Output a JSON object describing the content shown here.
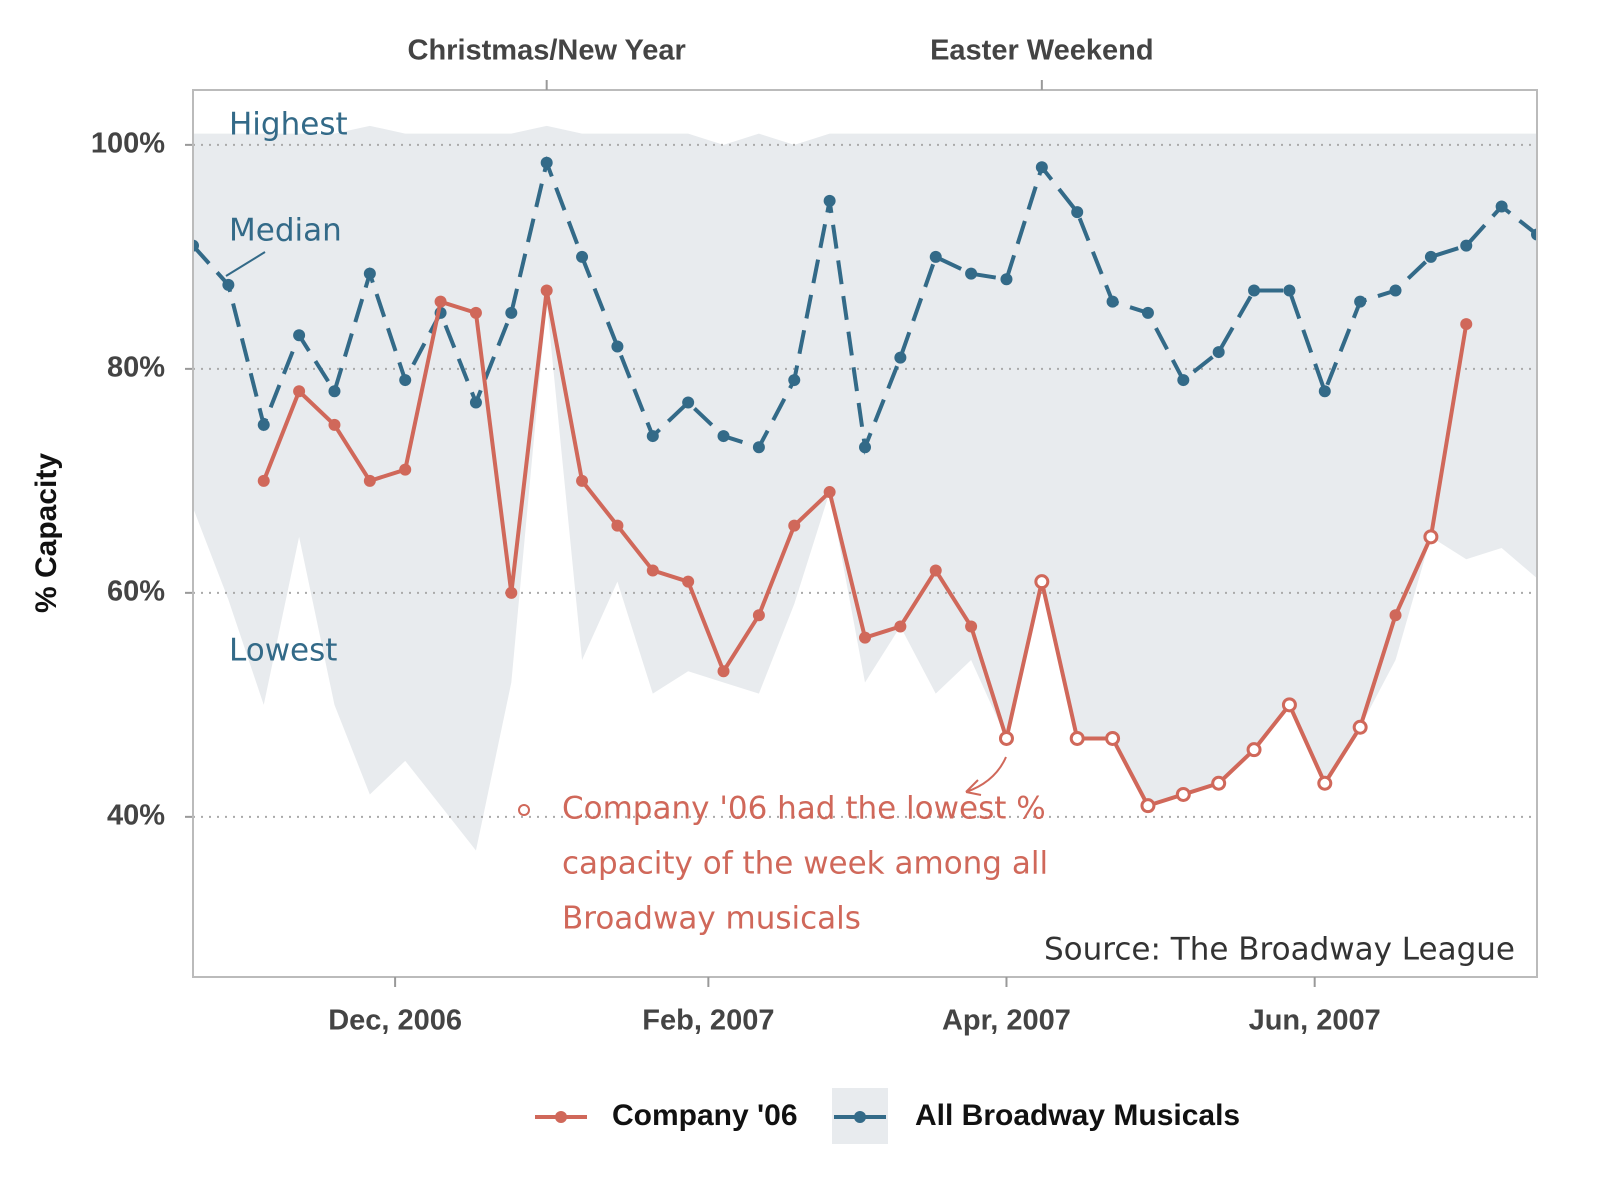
{
  "chart_data": {
    "type": "line",
    "y_label": "% Capacity",
    "x": [
      "2006-10-22",
      "2006-10-29",
      "2006-11-05",
      "2006-11-12",
      "2006-11-19",
      "2006-11-26",
      "2006-12-03",
      "2006-12-10",
      "2006-12-17",
      "2006-12-24",
      "2006-12-31",
      "2007-01-07",
      "2007-01-14",
      "2007-01-21",
      "2007-01-28",
      "2007-02-04",
      "2007-02-11",
      "2007-02-18",
      "2007-02-25",
      "2007-03-04",
      "2007-03-11",
      "2007-03-18",
      "2007-03-25",
      "2007-04-01",
      "2007-04-08",
      "2007-04-15",
      "2007-04-22",
      "2007-04-29",
      "2007-05-06",
      "2007-05-13",
      "2007-05-20",
      "2007-05-27",
      "2007-06-03",
      "2007-06-10",
      "2007-06-17",
      "2007-06-24",
      "2007-07-01",
      "2007-07-08",
      "2007-07-15"
    ],
    "series": [
      {
        "name": "Company '06",
        "color": "#d0685a",
        "values": [
          null,
          null,
          70,
          78,
          75,
          70,
          71,
          86,
          85,
          60,
          87,
          70,
          66,
          62,
          61,
          53,
          58,
          66,
          69,
          56,
          57,
          62,
          57,
          47,
          61,
          47,
          47,
          41,
          42,
          43,
          46,
          50,
          43,
          48,
          58,
          65,
          84,
          null,
          null
        ],
        "open": [
          null,
          null,
          false,
          false,
          false,
          false,
          false,
          false,
          false,
          false,
          false,
          false,
          false,
          false,
          false,
          false,
          false,
          false,
          false,
          false,
          false,
          false,
          false,
          true,
          true,
          true,
          true,
          true,
          true,
          true,
          true,
          true,
          true,
          true,
          false,
          true,
          false,
          null,
          null
        ]
      },
      {
        "name": "All Broadway Musicals",
        "color": "#336a88",
        "band_color": "#e8ebee",
        "values": [
          91,
          87.5,
          75,
          83,
          78,
          88.5,
          79,
          85,
          77,
          85,
          98.4,
          90,
          82,
          74,
          77,
          74,
          73,
          79,
          95,
          73,
          81,
          90,
          88.5,
          88,
          98,
          94,
          86,
          85,
          79,
          81.5,
          87,
          87,
          78,
          86,
          87,
          90,
          91,
          94.5,
          92
        ],
        "band_high": [
          101,
          101,
          101,
          101,
          101,
          101.7,
          101,
          101,
          101,
          101,
          101.7,
          101,
          101,
          101,
          101,
          100,
          101,
          100,
          101,
          101,
          101,
          101,
          101,
          101,
          101,
          101,
          101,
          101,
          101,
          101,
          101,
          101,
          101,
          101,
          101,
          101,
          101,
          101,
          101
        ],
        "band_low": [
          67.6,
          59.4,
          50,
          65,
          50,
          42,
          45,
          41,
          37,
          52,
          86,
          54,
          61,
          51,
          53,
          52,
          51,
          59,
          69,
          52,
          57,
          51,
          54,
          47,
          61,
          47,
          47,
          41,
          42,
          43,
          46,
          50,
          43,
          48,
          54,
          65,
          63,
          64,
          61.3
        ]
      }
    ],
    "xlim": [
      "2006-10-22",
      "2007-07-15"
    ],
    "xticks": [
      {
        "value": "2006-12-01",
        "label": "Dec, 2006"
      },
      {
        "value": "2007-02-01",
        "label": "Feb, 2007"
      },
      {
        "value": "2007-04-01",
        "label": "Apr, 2007"
      },
      {
        "value": "2007-06-01",
        "label": "Jun, 2007"
      }
    ],
    "x2ticks": [
      {
        "value": "2006-12-31",
        "label": "Christmas/New Year"
      },
      {
        "value": "2007-04-08",
        "label": "Easter Weekend"
      }
    ],
    "ylim": [
      25.7,
      104.9
    ],
    "yticks": [
      {
        "value": 40,
        "label": "40%"
      },
      {
        "value": 60,
        "label": "60%"
      },
      {
        "value": 80,
        "label": "80%"
      },
      {
        "value": 100,
        "label": "100%"
      }
    ],
    "grid": true,
    "legend": "bottom",
    "band_labels": {
      "high": "Highest",
      "median": "Median",
      "low": "Lowest"
    },
    "note": [
      "Company '06 had the lowest %",
      "capacity of the week among all",
      "Broadway musicals"
    ],
    "source": "Source: The Broadway League"
  }
}
